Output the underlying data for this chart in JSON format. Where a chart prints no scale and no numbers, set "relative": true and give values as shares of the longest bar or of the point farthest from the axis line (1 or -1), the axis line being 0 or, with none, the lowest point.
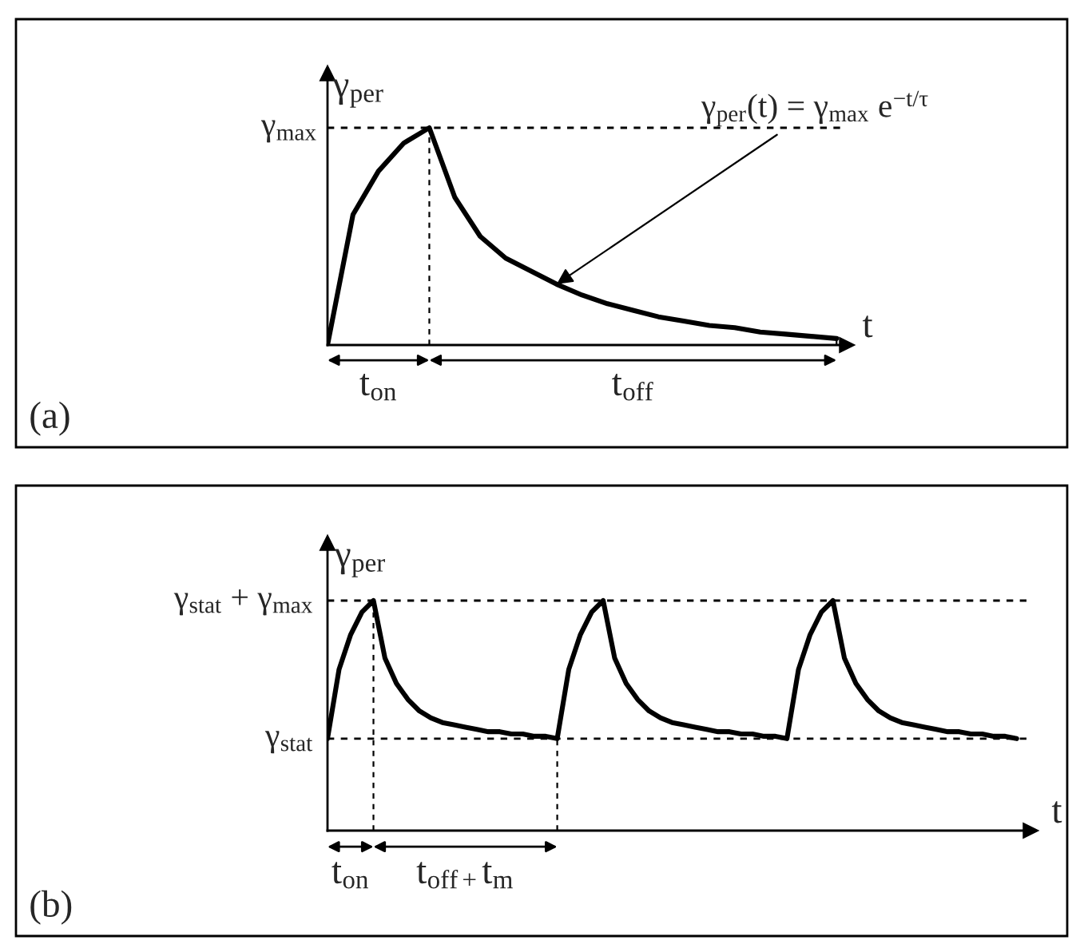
{
  "chart_data": [
    {
      "type": "line",
      "relative": true,
      "ylabel": "γ$_{per}$",
      "xlabel": "t",
      "grid": false,
      "categories": [
        null,
        null,
        null,
        null,
        null,
        null,
        null,
        null,
        null,
        null,
        null,
        null,
        null,
        null,
        null,
        null,
        null,
        null,
        null,
        null,
        null
      ],
      "series": [
        {
          "color": "#000000",
          "values": [
            0,
            0.6,
            0.8,
            0.93,
            1,
            0.68,
            0.5,
            0.4,
            0.34,
            0.28,
            0.23,
            0.19,
            0.16,
            0.13,
            0.11,
            0.09,
            0.08,
            0.06,
            0.05,
            0.04,
            0.03
          ]
        }
      ],
      "ref_lines": [
        {
          "axis": "y",
          "value": 1,
          "label": "γ$_{max}$",
          "line_style": "dashed"
        }
      ],
      "annotations": [
        "(a)",
        "t$_{on}$",
        "t$_{off}$",
        "γ$_{per}$(t) = γ$_{max}$ e$^{−t/τ}$"
      ]
    },
    {
      "type": "line",
      "relative": true,
      "ylabel": "γ$_{per}$",
      "xlabel": "t",
      "grid": false,
      "categories": [
        null,
        null,
        null,
        null,
        null,
        null,
        null,
        null,
        null,
        null,
        null,
        null,
        null,
        null,
        null,
        null,
        null,
        null,
        null,
        null,
        null,
        null,
        null,
        null,
        null,
        null,
        null,
        null,
        null,
        null,
        null,
        null,
        null,
        null,
        null,
        null,
        null,
        null,
        null,
        null,
        null,
        null,
        null,
        null,
        null,
        null,
        null,
        null,
        null,
        null,
        null,
        null,
        null,
        null,
        null,
        null,
        null,
        null,
        null,
        null,
        null
      ],
      "series": [
        {
          "color": "#000000",
          "values": [
            0.4,
            0.7,
            0.85,
            0.95,
            1,
            0.75,
            0.64,
            0.57,
            0.52,
            0.49,
            0.47,
            0.46,
            0.45,
            0.44,
            0.43,
            0.43,
            0.42,
            0.42,
            0.41,
            0.41,
            0.4,
            0.7,
            0.85,
            0.95,
            1,
            0.75,
            0.64,
            0.57,
            0.52,
            0.49,
            0.47,
            0.46,
            0.45,
            0.44,
            0.43,
            0.43,
            0.42,
            0.42,
            0.41,
            0.41,
            0.4,
            0.7,
            0.85,
            0.95,
            1,
            0.75,
            0.64,
            0.57,
            0.52,
            0.49,
            0.47,
            0.46,
            0.45,
            0.44,
            0.43,
            0.43,
            0.42,
            0.42,
            0.41,
            0.41,
            0.4
          ]
        }
      ],
      "ref_lines": [
        {
          "axis": "y",
          "value": 1,
          "label": "γ$_{stat}$ + γ$_{max}$",
          "line_style": "dashed"
        },
        {
          "axis": "y",
          "value": 0.4,
          "label": "γ$_{stat}$",
          "line_style": "dashed"
        }
      ],
      "annotations": [
        "(b)",
        "t$_{on}$",
        "t$_{off+}$t$_{m}$"
      ]
    }
  ]
}
